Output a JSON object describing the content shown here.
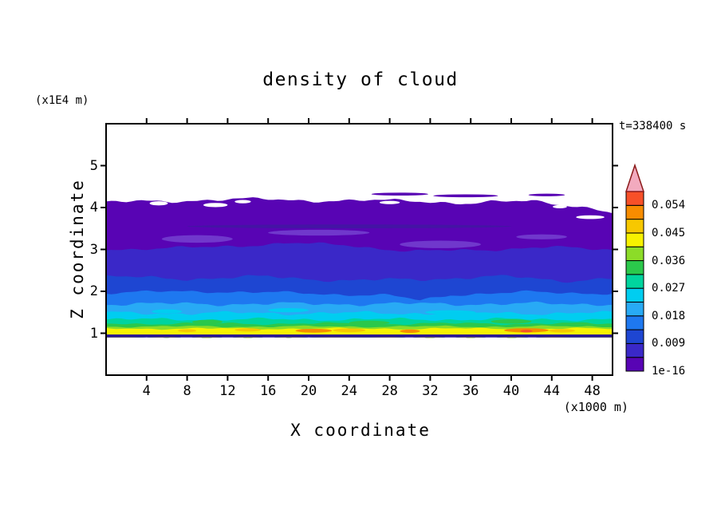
{
  "chart_data": {
    "type": "heatmap",
    "title": "density of cloud",
    "timestamp": "t=338400 s",
    "xlabel": "X coordinate",
    "x_unit": "(x1000 m)",
    "ylabel": "Z coordinate",
    "y_unit": "(x1E4 m)",
    "xlim": [
      0,
      50
    ],
    "zlim": [
      0,
      6
    ],
    "xticks": [
      4,
      8,
      12,
      16,
      20,
      24,
      28,
      32,
      36,
      40,
      44,
      48
    ],
    "yticks": [
      1,
      2,
      3,
      4,
      5
    ],
    "grid": false,
    "legend_position": "right-colorbar",
    "colorbar": {
      "labels_bottom_to_top": [
        "1e-16",
        "0.009",
        "0.018",
        "0.027",
        "0.036",
        "0.045",
        "0.054"
      ],
      "colors_bottom_to_top": [
        "#5804B4",
        "#3A28C8",
        "#1E46D2",
        "#1E78F0",
        "#28AAF5",
        "#00CDF0",
        "#00D49E",
        "#2BC84B",
        "#8CDC28",
        "#F7F200",
        "#F7C800",
        "#F78C00",
        "#F75028"
      ],
      "overflow_color": "#F2AABE",
      "overflow_outline": "#8B1A1A"
    },
    "field": {
      "description": "filled-contour cloud density layers, z in x1E4 m, x in x1000 m",
      "base_z": 0.9,
      "bands": [
        {
          "level_min": "1e-16",
          "color_index": 0,
          "amp": 0.06,
          "seed": 3,
          "profile": [
            [
              0,
              4.12
            ],
            [
              8,
              4.17
            ],
            [
              16,
              4.2
            ],
            [
              24,
              4.15
            ],
            [
              30,
              4.18
            ],
            [
              36,
              4.08
            ],
            [
              42,
              4.18
            ],
            [
              46,
              4.05
            ],
            [
              50,
              3.85
            ]
          ]
        },
        {
          "level_min": "0.0045",
          "color_index": 1,
          "amp": 0.05,
          "seed": 7,
          "profile": [
            [
              0,
              3.0
            ],
            [
              10,
              3.05
            ],
            [
              18,
              3.15
            ],
            [
              24,
              3.1
            ],
            [
              30,
              2.95
            ],
            [
              38,
              3.0
            ],
            [
              44,
              3.05
            ],
            [
              50,
              3.0
            ]
          ]
        },
        {
          "level_min": "0.009",
          "color_index": 2,
          "amp": 0.06,
          "seed": 11,
          "profile": [
            [
              0,
              2.35
            ],
            [
              8,
              2.3
            ],
            [
              16,
              2.35
            ],
            [
              24,
              2.25
            ],
            [
              32,
              2.3
            ],
            [
              40,
              2.35
            ],
            [
              46,
              2.25
            ],
            [
              50,
              2.3
            ]
          ]
        },
        {
          "level_min": "0.0135",
          "color_index": 3,
          "amp": 0.05,
          "seed": 5,
          "profile": [
            [
              0,
              1.97
            ],
            [
              10,
              2.0
            ],
            [
              20,
              1.95
            ],
            [
              28,
              1.9
            ],
            [
              31,
              1.78
            ],
            [
              34,
              1.92
            ],
            [
              42,
              1.98
            ],
            [
              50,
              1.95
            ]
          ]
        },
        {
          "level_min": "0.018",
          "color_index": 4,
          "amp": 0.06,
          "seed": 13,
          "z_top": 1.7
        },
        {
          "level_min": "0.0225",
          "color_index": 5,
          "amp": 0.06,
          "seed": 17,
          "z_top": 1.48
        },
        {
          "level_min": "0.027",
          "color_index": 6,
          "amp": 0.05,
          "seed": 19,
          "z_top": 1.33
        },
        {
          "level_min": "0.0315",
          "color_index": 7,
          "amp": 0.04,
          "seed": 23,
          "z_top": 1.23
        },
        {
          "level_min": "0.036",
          "color_index": 8,
          "amp": 0.03,
          "seed": 29,
          "z_top": 1.16
        },
        {
          "level_min": "0.0405",
          "color_index": 9,
          "amp": 0.03,
          "seed": 31,
          "z_top": 1.11
        }
      ],
      "bottom_strip": {
        "z_top": 0.97,
        "z_bottom": 0.9,
        "color": "#2A1694"
      },
      "patches": [
        {
          "color": "#7038CC",
          "x": 9,
          "z": 3.25,
          "rx": 3.5,
          "rz": 0.09
        },
        {
          "color": "#7038CC",
          "x": 21,
          "z": 3.4,
          "rx": 5.0,
          "rz": 0.07
        },
        {
          "color": "#7038CC",
          "x": 33,
          "z": 3.12,
          "rx": 4.0,
          "rz": 0.09
        },
        {
          "color": "#7038CC",
          "x": 43,
          "z": 3.3,
          "rx": 2.5,
          "rz": 0.06
        },
        {
          "color": "#4414A4",
          "x": 24,
          "z": 3.55,
          "rx": 16,
          "rz": 0.045
        },
        {
          "color": "#00CDF0",
          "x": 6,
          "z": 1.52,
          "rx": 1.5,
          "rz": 0.05
        },
        {
          "color": "#00CDF0",
          "x": 18,
          "z": 1.55,
          "rx": 2.0,
          "rz": 0.05
        },
        {
          "color": "#00CDF0",
          "x": 34,
          "z": 1.5,
          "rx": 2.5,
          "rz": 0.05
        },
        {
          "color": "#2BC84B",
          "x": 10,
          "z": 1.27,
          "rx": 1.5,
          "rz": 0.05
        },
        {
          "color": "#2BC84B",
          "x": 26,
          "z": 1.25,
          "rx": 2.0,
          "rz": 0.05
        },
        {
          "color": "#2BC84B",
          "x": 40,
          "z": 1.28,
          "rx": 2.0,
          "rz": 0.05
        },
        {
          "color": "#F7C800",
          "x": 8,
          "z": 1.06,
          "rx": 0.9,
          "rz": 0.035
        },
        {
          "color": "#F7C800",
          "x": 14,
          "z": 1.08,
          "rx": 1.3,
          "rz": 0.04
        },
        {
          "color": "#F7C800",
          "x": 24,
          "z": 1.07,
          "rx": 1.6,
          "rz": 0.045
        },
        {
          "color": "#F7C800",
          "x": 45,
          "z": 1.06,
          "rx": 1.3,
          "rz": 0.04
        },
        {
          "color": "#F78C00",
          "x": 20.5,
          "z": 1.06,
          "rx": 1.8,
          "rz": 0.045
        },
        {
          "color": "#F78C00",
          "x": 30,
          "z": 1.05,
          "rx": 1.0,
          "rz": 0.04
        },
        {
          "color": "#F78C00",
          "x": 41.5,
          "z": 1.07,
          "rx": 2.2,
          "rz": 0.05
        },
        {
          "color": "#F75028",
          "x": 41.5,
          "z": 1.05,
          "rx": 0.6,
          "rz": 0.03
        }
      ],
      "white_gaps": [
        {
          "x": 5.2,
          "z": 4.1,
          "rx": 0.9,
          "rz": 0.05
        },
        {
          "x": 10.8,
          "z": 4.06,
          "rx": 1.2,
          "rz": 0.05
        },
        {
          "x": 13.5,
          "z": 4.14,
          "rx": 0.8,
          "rz": 0.04
        },
        {
          "x": 28,
          "z": 4.12,
          "rx": 1.0,
          "rz": 0.04
        },
        {
          "x": 44.8,
          "z": 4.02,
          "rx": 0.7,
          "rz": 0.04
        },
        {
          "x": 47.8,
          "z": 3.77,
          "rx": 1.4,
          "rz": 0.045
        }
      ],
      "detached_slivers": [
        {
          "x": 29,
          "z": 4.32,
          "rx": 2.8,
          "rz": 0.035
        },
        {
          "x": 35.5,
          "z": 4.28,
          "rx": 3.2,
          "rz": 0.035
        },
        {
          "x": 43.5,
          "z": 4.3,
          "rx": 1.8,
          "rz": 0.03
        }
      ]
    }
  }
}
